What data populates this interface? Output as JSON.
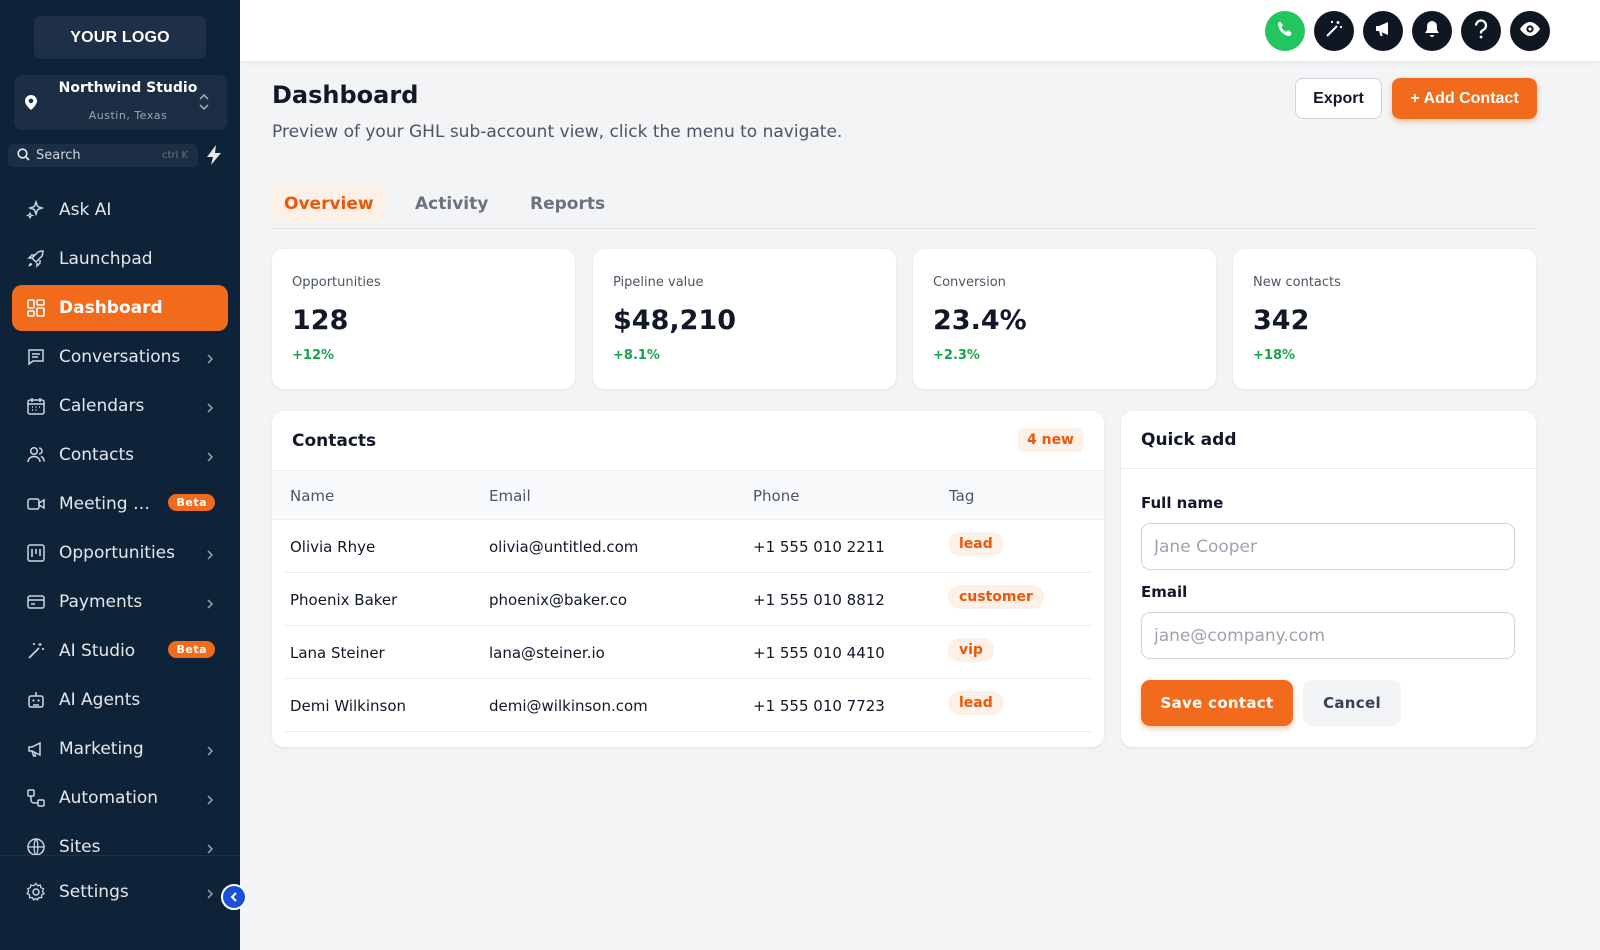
{
  "sidebar": {
    "logo": "YOUR LOGO",
    "location": {
      "name": "Northwind Studio",
      "sub": "Austin, Texas"
    },
    "search": {
      "label": "Search",
      "hint": "ctrl K"
    },
    "items": [
      {
        "label": "Ask AI",
        "icon": "sparkles-icon"
      },
      {
        "label": "Launchpad",
        "icon": "rocket-icon"
      },
      {
        "label": "Dashboard",
        "icon": "grid-icon",
        "active": true
      },
      {
        "label": "Conversations",
        "icon": "chat-icon"
      },
      {
        "label": "Calendars",
        "icon": "calendar-icon"
      },
      {
        "label": "Contacts",
        "icon": "users-icon"
      },
      {
        "label": "Meeting Notes",
        "icon": "video-icon",
        "badge": "Beta"
      },
      {
        "label": "Opportunities",
        "icon": "kanban-icon"
      },
      {
        "label": "Payments",
        "icon": "credit-card-icon"
      },
      {
        "label": "AI Studio",
        "icon": "magic-wand-icon",
        "badge": "Beta"
      },
      {
        "label": "AI Agents",
        "icon": "robot-icon"
      },
      {
        "label": "Marketing",
        "icon": "megaphone-icon"
      },
      {
        "label": "Automation",
        "icon": "workflow-icon"
      },
      {
        "label": "Sites",
        "icon": "globe-icon"
      }
    ],
    "settings": "Settings"
  },
  "topbar": {
    "buttons": [
      "phone-icon",
      "magic-wand-icon",
      "megaphone-icon",
      "bell-icon",
      "help-icon",
      "eye-icon"
    ]
  },
  "header": {
    "title": "Dashboard",
    "subtitle": "Preview of your GHL sub-account view, click the menu to navigate.",
    "export": "Export",
    "add": "+ Add Contact"
  },
  "tabs": [
    "Overview",
    "Activity",
    "Reports"
  ],
  "stats": [
    {
      "label": "Opportunities",
      "value": "128",
      "delta": "+12%"
    },
    {
      "label": "Pipeline value",
      "value": "$48,210",
      "delta": "+8.1%"
    },
    {
      "label": "Conversion",
      "value": "23.4%",
      "delta": "+2.3%"
    },
    {
      "label": "New contacts",
      "value": "342",
      "delta": "+18%"
    }
  ],
  "contacts": {
    "title": "Contacts",
    "badge": "4 new",
    "columns": [
      "Name",
      "Email",
      "Phone",
      "Tag"
    ],
    "rows": [
      {
        "name": "Olivia Rhye",
        "email": "olivia@untitled.com",
        "phone": "+1 555 010 2211",
        "tag": "lead"
      },
      {
        "name": "Phoenix Baker",
        "email": "phoenix@baker.co",
        "phone": "+1 555 010 8812",
        "tag": "customer"
      },
      {
        "name": "Lana Steiner",
        "email": "lana@steiner.io",
        "phone": "+1 555 010 4410",
        "tag": "vip"
      },
      {
        "name": "Demi Wilkinson",
        "email": "demi@wilkinson.com",
        "phone": "+1 555 010 7723",
        "tag": "lead"
      }
    ]
  },
  "quick_add": {
    "title": "Quick add",
    "name_label": "Full name",
    "name_placeholder": "Jane Cooper",
    "email_label": "Email",
    "email_placeholder": "jane@company.com",
    "save": "Save contact",
    "cancel": "Cancel"
  },
  "colors": {
    "accent": "#f26b1d",
    "sidebar": "#0f2338",
    "positive": "#16a34a"
  }
}
